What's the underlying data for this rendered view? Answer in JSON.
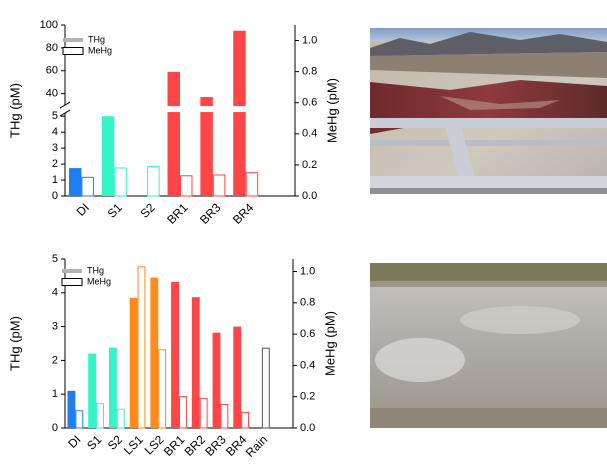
{
  "chart_data": [
    {
      "type": "bar",
      "categories": [
        "DI",
        "S1",
        "S2",
        "BR1",
        "BR3",
        "BR4"
      ],
      "ylabel": "THg (pM)",
      "y2label": "MeHg (pM)",
      "ylim": [
        0,
        100
      ],
      "ybreak": [
        5.2,
        30
      ],
      "yticks": [
        0,
        1,
        2,
        3,
        4,
        5,
        40,
        60,
        80,
        100
      ],
      "y2lim": [
        0,
        1.1
      ],
      "y2ticks": [
        {
          "value": 0,
          "label": "0.0"
        },
        0.2,
        0.4,
        0.6,
        0.8,
        {
          "value": 1,
          "label": "1.0"
        }
      ],
      "series": [
        {
          "name": "THg",
          "color": "#b3b3b3",
          "style": "filled",
          "colors": [
            "#1f7fef",
            "#33f5c8",
            "#33f5c8",
            "#ff4646",
            "#ff4646",
            "#ff4646"
          ],
          "values": [
            1.75,
            5,
            null,
            59,
            37,
            95
          ]
        },
        {
          "name": "MeHg",
          "color": "#000000",
          "style": "outline",
          "axis": "y2",
          "colors": [
            "#1f7fef",
            "#33f5c8",
            "#33f5c8",
            "#ff4646",
            "#ff4646",
            "#ff4646"
          ],
          "values": [
            0.12,
            0.18,
            0.19,
            0.13,
            0.135,
            0.15
          ]
        }
      ]
    },
    {
      "type": "bar",
      "categories": [
        "DI",
        "S1",
        "S2",
        "LS1",
        "LS2",
        "BR1",
        "BR2",
        "BR3",
        "BR4",
        "Rain"
      ],
      "ylabel": "THg (pM)",
      "y2label": "MeHg (pM)",
      "ylim": [
        0,
        5
      ],
      "yticks": [
        0,
        1,
        2,
        3,
        4,
        5
      ],
      "y2lim": [
        0,
        1.08
      ],
      "y2ticks": [
        {
          "value": 0,
          "label": "0.0"
        },
        0.2,
        0.4,
        0.6,
        0.8,
        {
          "value": 1,
          "label": "1.0"
        }
      ],
      "series": [
        {
          "name": "THg",
          "color": "#b3b3b3",
          "style": "filled",
          "colors": [
            "#1f7fef",
            "#33f5c8",
            "#33f5c8",
            "#ff8c1a",
            "#ff8c1a",
            "#ff4646",
            "#ff4646",
            "#ff4646",
            "#ff4646",
            "#555555"
          ],
          "values": [
            1.1,
            2.2,
            2.38,
            3.85,
            4.45,
            4.32,
            3.87,
            2.82,
            3.0,
            null
          ]
        },
        {
          "name": "MeHg",
          "color": "#000000",
          "style": "outline",
          "axis": "y2",
          "colors": [
            "#1f7fef",
            "#33f5c8",
            "#33f5c8",
            "#ff8c1a",
            "#ff8c1a",
            "#ff4646",
            "#ff4646",
            "#ff4646",
            "#ff4646",
            "#555555"
          ],
          "values": [
            0.11,
            0.155,
            0.12,
            1.03,
            0.5,
            0.2,
            0.19,
            0.15,
            0.1,
            0.51
          ]
        }
      ]
    }
  ]
}
